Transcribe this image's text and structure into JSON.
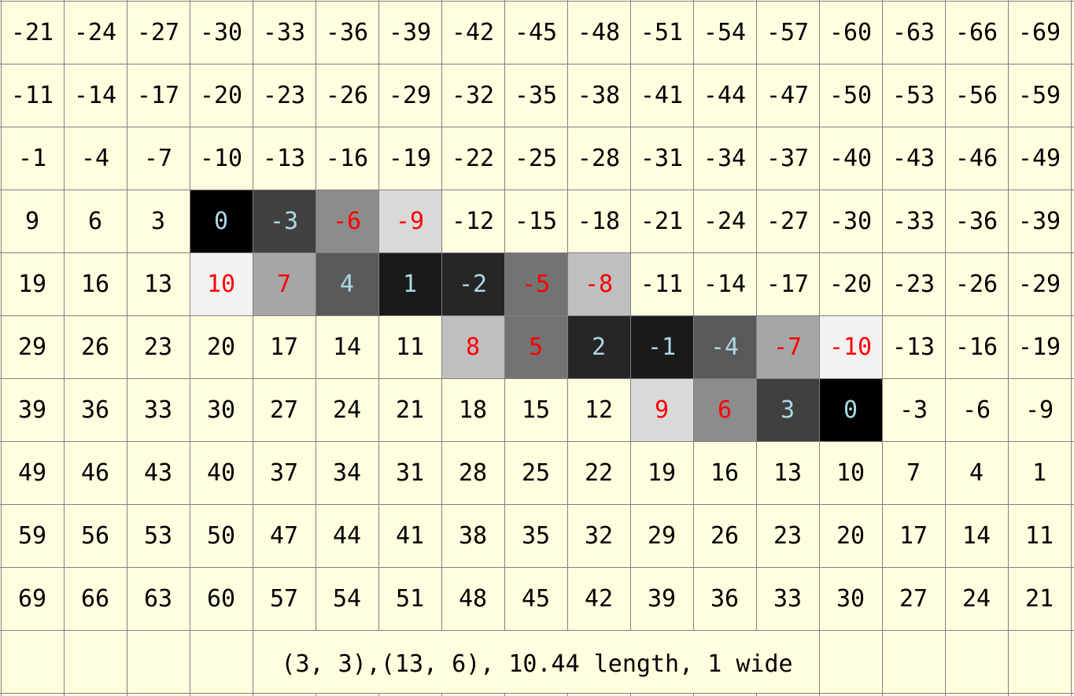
{
  "grid": {
    "rows": [
      [
        "-21",
        "-24",
        "-27",
        "-30",
        "-33",
        "-36",
        "-39",
        "-42",
        "-45",
        "-48",
        "-51",
        "-54",
        "-57",
        "-60",
        "-63",
        "-66",
        "-69"
      ],
      [
        "-11",
        "-14",
        "-17",
        "-20",
        "-23",
        "-26",
        "-29",
        "-32",
        "-35",
        "-38",
        "-41",
        "-44",
        "-47",
        "-50",
        "-53",
        "-56",
        "-59"
      ],
      [
        "-1",
        "-4",
        "-7",
        "-10",
        "-13",
        "-16",
        "-19",
        "-22",
        "-25",
        "-28",
        "-31",
        "-34",
        "-37",
        "-40",
        "-43",
        "-46",
        "-49"
      ],
      [
        "9",
        "6",
        "3",
        "0",
        "-3",
        "-6",
        "-9",
        "-12",
        "-15",
        "-18",
        "-21",
        "-24",
        "-27",
        "-30",
        "-33",
        "-36",
        "-39"
      ],
      [
        "19",
        "16",
        "13",
        "10",
        "7",
        "4",
        "1",
        "-2",
        "-5",
        "-8",
        "-11",
        "-14",
        "-17",
        "-20",
        "-23",
        "-26",
        "-29"
      ],
      [
        "29",
        "26",
        "23",
        "20",
        "17",
        "14",
        "11",
        "8",
        "5",
        "2",
        "-1",
        "-4",
        "-7",
        "-10",
        "-13",
        "-16",
        "-19"
      ],
      [
        "39",
        "36",
        "33",
        "30",
        "27",
        "24",
        "21",
        "18",
        "15",
        "12",
        "9",
        "6",
        "3",
        "0",
        "-3",
        "-6",
        "-9"
      ],
      [
        "49",
        "46",
        "43",
        "40",
        "37",
        "34",
        "31",
        "28",
        "25",
        "22",
        "19",
        "16",
        "13",
        "10",
        "7",
        "4",
        "1"
      ],
      [
        "59",
        "56",
        "53",
        "50",
        "47",
        "44",
        "41",
        "38",
        "35",
        "32",
        "29",
        "26",
        "23",
        "20",
        "17",
        "14",
        "11"
      ],
      [
        "69",
        "66",
        "63",
        "60",
        "57",
        "54",
        "51",
        "48",
        "45",
        "42",
        "39",
        "36",
        "33",
        "30",
        "27",
        "24",
        "21"
      ]
    ],
    "highlighted_cells": [
      {
        "col": 3,
        "row": 3,
        "fill": "#000000",
        "text_color": "#add8e6"
      },
      {
        "col": 4,
        "row": 3,
        "fill": "#404040",
        "text_color": "#add8e6"
      },
      {
        "col": 5,
        "row": 3,
        "fill": "#8c8c8c",
        "text_color": "#ff0000"
      },
      {
        "col": 6,
        "row": 3,
        "fill": "#d9d9d9",
        "text_color": "#ff0000"
      },
      {
        "col": 3,
        "row": 4,
        "fill": "#f2f2f2",
        "text_color": "#ff0000"
      },
      {
        "col": 4,
        "row": 4,
        "fill": "#a6a6a6",
        "text_color": "#ff0000"
      },
      {
        "col": 5,
        "row": 4,
        "fill": "#595959",
        "text_color": "#add8e6"
      },
      {
        "col": 6,
        "row": 4,
        "fill": "#1a1a1a",
        "text_color": "#add8e6"
      },
      {
        "col": 7,
        "row": 4,
        "fill": "#262626",
        "text_color": "#add8e6"
      },
      {
        "col": 8,
        "row": 4,
        "fill": "#737373",
        "text_color": "#ff0000"
      },
      {
        "col": 9,
        "row": 4,
        "fill": "#bfbfbf",
        "text_color": "#ff0000"
      },
      {
        "col": 7,
        "row": 5,
        "fill": "#bfbfbf",
        "text_color": "#ff0000"
      },
      {
        "col": 8,
        "row": 5,
        "fill": "#737373",
        "text_color": "#ff0000"
      },
      {
        "col": 9,
        "row": 5,
        "fill": "#262626",
        "text_color": "#add8e6"
      },
      {
        "col": 10,
        "row": 5,
        "fill": "#1a1a1a",
        "text_color": "#add8e6"
      },
      {
        "col": 11,
        "row": 5,
        "fill": "#595959",
        "text_color": "#add8e6"
      },
      {
        "col": 12,
        "row": 5,
        "fill": "#a6a6a6",
        "text_color": "#ff0000"
      },
      {
        "col": 13,
        "row": 5,
        "fill": "#f2f2f2",
        "text_color": "#ff0000"
      },
      {
        "col": 10,
        "row": 6,
        "fill": "#d9d9d9",
        "text_color": "#ff0000"
      },
      {
        "col": 11,
        "row": 6,
        "fill": "#8c8c8c",
        "text_color": "#ff0000"
      },
      {
        "col": 12,
        "row": 6,
        "fill": "#404040",
        "text_color": "#add8e6"
      },
      {
        "col": 13,
        "row": 6,
        "fill": "#000000",
        "text_color": "#add8e6"
      }
    ],
    "colors": {
      "background": "#ffffe0",
      "grid_line": "#808080",
      "text": "#000000"
    }
  },
  "caption": "(3, 3),(13, 6), 10.44 length, 1 wide"
}
